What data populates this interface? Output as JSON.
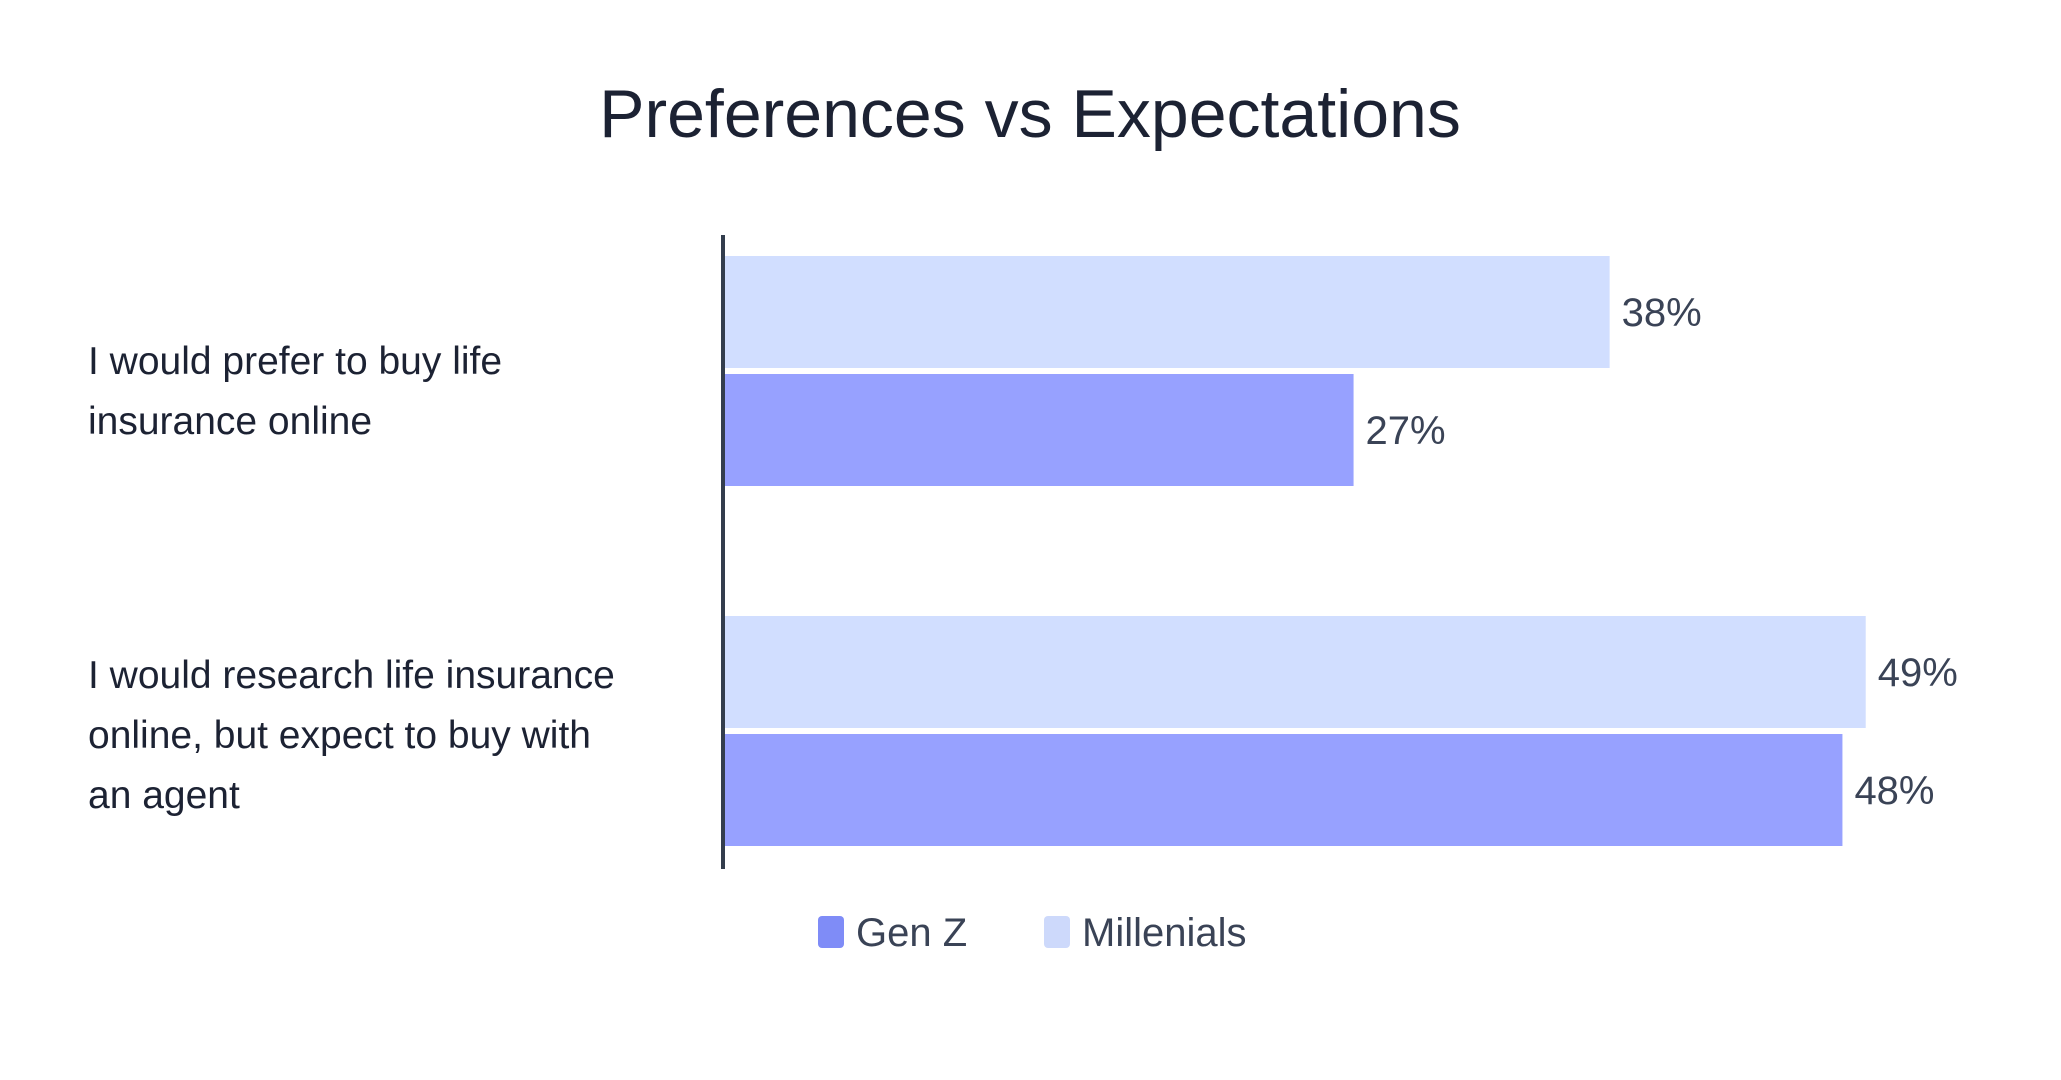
{
  "chart_data": {
    "type": "bar",
    "orientation": "horizontal",
    "title": "Preferences vs Expectations",
    "categories": [
      "I would prefer to buy life insurance online",
      "I would research life insurance online, but expect to buy with an agent"
    ],
    "category_label_lines": [
      [
        "I would prefer to buy life",
        "insurance online"
      ],
      [
        "I would research life insurance",
        "online, but expect to buy with",
        "an agent"
      ]
    ],
    "series": [
      {
        "name": "Millenials",
        "color": "#d1deff",
        "legend_color": "#cdd9fb",
        "values": [
          38,
          49
        ],
        "labels": [
          "38%",
          "49%"
        ]
      },
      {
        "name": "Gen Z",
        "color": "#97a1ff",
        "legend_color": "#7f8cf7",
        "values": [
          27,
          48
        ],
        "labels": [
          "27%",
          "48%"
        ]
      }
    ],
    "legend_order": [
      "Gen Z",
      "Millenials"
    ],
    "legend_position": "bottom-center",
    "xlim": [
      0,
      50
    ],
    "grid": false,
    "axis_line": "left",
    "value_format": "percent"
  },
  "colors": {
    "text": "#1c2233",
    "label_text": "#3a4356",
    "axis": "#333d4d",
    "background": "#ffffff"
  }
}
